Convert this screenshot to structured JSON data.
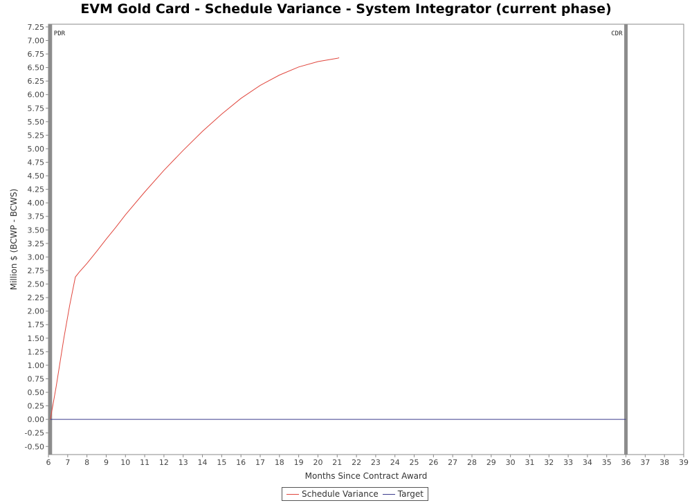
{
  "chart_data": {
    "type": "line",
    "title": "EVM Gold Card - Schedule Variance - System Integrator (current phase)",
    "xlabel": "Months Since Contract Award",
    "ylabel": "Million $ (BCWP - BCWS)",
    "xlim": [
      6,
      39
    ],
    "ylim": [
      -0.65,
      7.3
    ],
    "x_ticks": [
      6,
      7,
      8,
      9,
      10,
      11,
      12,
      13,
      14,
      15,
      16,
      17,
      18,
      19,
      20,
      21,
      22,
      23,
      24,
      25,
      26,
      27,
      28,
      29,
      30,
      31,
      32,
      33,
      34,
      35,
      36,
      37,
      38,
      39
    ],
    "y_ticks": [
      -0.5,
      -0.25,
      0,
      0.25,
      0.5,
      0.75,
      1,
      1.25,
      1.5,
      1.75,
      2,
      2.25,
      2.5,
      2.75,
      3,
      3.25,
      3.5,
      3.75,
      4,
      4.25,
      4.5,
      4.75,
      5,
      5.25,
      5.5,
      5.75,
      6,
      6.25,
      6.5,
      6.75,
      7,
      7.25
    ],
    "grid": false,
    "legend_position": "bottom",
    "series": [
      {
        "name": "Schedule Variance",
        "color": "#e0453c",
        "x": [
          6.1,
          6.4,
          6.8,
          7.1,
          7.4,
          7.6,
          8,
          8.5,
          9,
          9.5,
          10,
          11,
          12,
          13,
          14,
          15,
          16,
          17,
          18,
          19,
          20,
          21,
          21.1
        ],
        "y": [
          0,
          0.6,
          1.5,
          2.1,
          2.63,
          2.72,
          2.88,
          3.1,
          3.33,
          3.55,
          3.78,
          4.2,
          4.6,
          4.97,
          5.32,
          5.64,
          5.93,
          6.17,
          6.36,
          6.51,
          6.61,
          6.67,
          6.68
        ]
      },
      {
        "name": "Target",
        "color": "#3a3a8c",
        "x": [
          6.1,
          36
        ],
        "y": [
          0,
          0
        ]
      }
    ],
    "markers": [
      {
        "label": "PDR",
        "x": 6.1
      },
      {
        "label": "CDR",
        "x": 36
      }
    ]
  }
}
